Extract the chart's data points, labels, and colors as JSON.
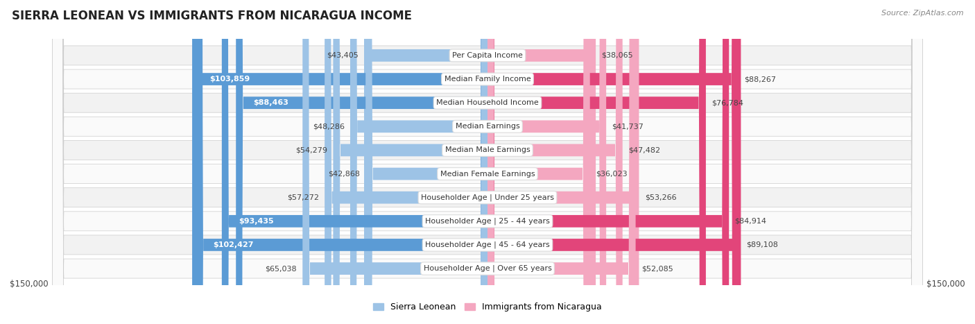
{
  "title": "SIERRA LEONEAN VS IMMIGRANTS FROM NICARAGUA INCOME",
  "source": "Source: ZipAtlas.com",
  "categories": [
    "Per Capita Income",
    "Median Family Income",
    "Median Household Income",
    "Median Earnings",
    "Median Male Earnings",
    "Median Female Earnings",
    "Householder Age | Under 25 years",
    "Householder Age | 25 - 44 years",
    "Householder Age | 45 - 64 years",
    "Householder Age | Over 65 years"
  ],
  "sierra_leonean": [
    43405,
    103859,
    88463,
    48286,
    54279,
    42868,
    57272,
    93435,
    102427,
    65038
  ],
  "nicaragua": [
    38065,
    88267,
    76784,
    41737,
    47482,
    36023,
    53266,
    84914,
    89108,
    52085
  ],
  "max_value": 150000,
  "bar_height": 0.52,
  "sl_color_dark": "#5b9bd5",
  "sl_color_light": "#9dc3e6",
  "nic_color_dark": "#e2457a",
  "nic_color_light": "#f4a7c0",
  "bg_color": "#ffffff",
  "row_bg_odd": "#f2f2f2",
  "row_bg_even": "#fafafa",
  "legend_sl": "Sierra Leonean",
  "legend_nic": "Immigrants from Nicaragua",
  "xlabel_left": "$150,000",
  "xlabel_right": "$150,000",
  "inside_label_threshold": 75000,
  "title_fontsize": 12,
  "label_fontsize": 8,
  "cat_fontsize": 8
}
